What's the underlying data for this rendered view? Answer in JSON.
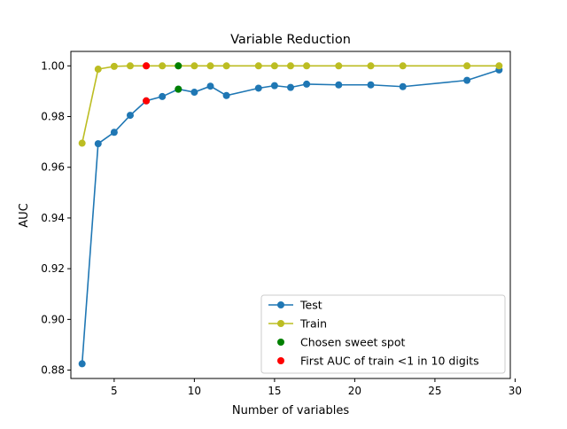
{
  "chart_data": {
    "type": "line",
    "title": "Variable Reduction",
    "xlabel": "Number of variables",
    "ylabel": "AUC",
    "xlim": [
      2.3,
      29.7
    ],
    "ylim": [
      0.8767,
      1.0057
    ],
    "xticks": [
      5,
      10,
      15,
      20,
      25,
      30
    ],
    "yticks": [
      0.88,
      0.9,
      0.92,
      0.94,
      0.96,
      0.98,
      1.0
    ],
    "xtick_labels": [
      "5",
      "10",
      "15",
      "20",
      "25",
      "30"
    ],
    "ytick_labels": [
      "0.88",
      "0.90",
      "0.92",
      "0.94",
      "0.96",
      "0.98",
      "1.00"
    ],
    "grid": false,
    "legend_position": "lower-right",
    "series": [
      {
        "name": "Test",
        "color": "#1f77b4",
        "style": "line-marker",
        "x": [
          3,
          4,
          5,
          6,
          7,
          8,
          9,
          10,
          11,
          12,
          14,
          15,
          16,
          17,
          19,
          21,
          23,
          27,
          29
        ],
        "y": [
          0.8825,
          0.9693,
          0.9738,
          0.9805,
          0.9862,
          0.9879,
          0.9908,
          0.9896,
          0.992,
          0.9883,
          0.9912,
          0.9922,
          0.9915,
          0.9928,
          0.9925,
          0.9925,
          0.9918,
          0.9943,
          0.9984
        ]
      },
      {
        "name": "Train",
        "color": "#bcbd22",
        "style": "line-marker",
        "x": [
          3,
          4,
          5,
          6,
          7,
          8,
          9,
          10,
          11,
          12,
          14,
          15,
          16,
          17,
          19,
          21,
          23,
          27,
          29
        ],
        "y": [
          0.9695,
          0.9987,
          0.9998,
          1.0,
          1.0,
          1.0,
          1.0,
          1.0,
          1.0,
          1.0,
          1.0,
          1.0,
          1.0,
          1.0,
          1.0,
          1.0,
          1.0,
          1.0,
          1.0
        ]
      },
      {
        "name": "Chosen sweet spot",
        "color": "#008000",
        "style": "marker",
        "x": [
          9,
          9
        ],
        "y": [
          1.0,
          0.9908
        ]
      },
      {
        "name": "First AUC of train <1 in 10 digits",
        "color": "#ff0000",
        "style": "marker",
        "x": [
          7,
          7
        ],
        "y": [
          1.0,
          0.9862
        ]
      }
    ]
  }
}
